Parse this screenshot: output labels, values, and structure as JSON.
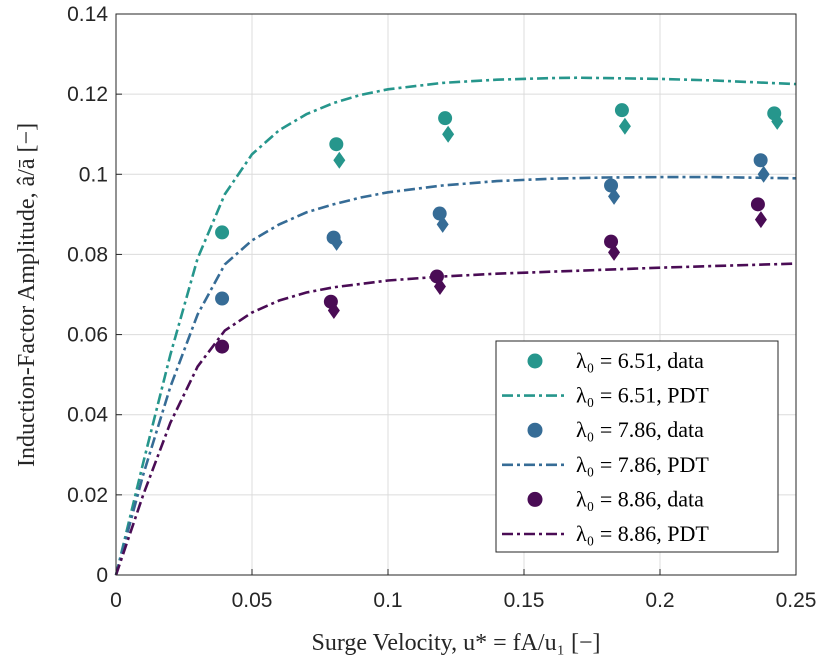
{
  "chart_data": {
    "type": "scatter",
    "xlabel": "Surge Velocity, u* = fA/u₁ [−]",
    "ylabel": "Induction-Factor Amplitude, â/ā [−]",
    "xlim": [
      0,
      0.25
    ],
    "ylim": [
      0,
      0.14
    ],
    "xticks": [
      0,
      0.05,
      0.1,
      0.15,
      0.2,
      0.25
    ],
    "xtick_labels": [
      "0",
      "0.05",
      "0.1",
      "0.15",
      "0.2",
      "0.25"
    ],
    "yticks": [
      0,
      0.02,
      0.04,
      0.06,
      0.08,
      0.1,
      0.12,
      0.14
    ],
    "ytick_labels": [
      "0",
      "0.02",
      "0.04",
      "0.06",
      "0.08",
      "0.1",
      "0.12",
      "0.14"
    ],
    "grid": true,
    "legend_position": "bottom-right",
    "series": [
      {
        "name": "λ₀ = 6.51, data",
        "kind": "data",
        "color": "#26968c",
        "x": [
          0.039,
          0.081,
          0.121,
          0.186,
          0.242
        ],
        "circle_y": [
          0.0855,
          0.1075,
          0.114,
          0.116,
          0.1152
        ],
        "diamond_y": [
          null,
          0.1035,
          0.11,
          0.112,
          0.1132
        ]
      },
      {
        "name": "λ₀ = 6.51, PDT",
        "kind": "model",
        "color": "#26968c",
        "x": [
          0,
          0.01,
          0.02,
          0.03,
          0.04,
          0.05,
          0.06,
          0.07,
          0.08,
          0.09,
          0.1,
          0.12,
          0.14,
          0.16,
          0.17,
          0.18,
          0.2,
          0.22,
          0.24,
          0.25
        ],
        "y": [
          0,
          0.028,
          0.055,
          0.079,
          0.095,
          0.105,
          0.111,
          0.115,
          0.1178,
          0.1198,
          0.1212,
          0.1228,
          0.1236,
          0.124,
          0.1241,
          0.124,
          0.1238,
          0.1234,
          0.1228,
          0.1225
        ]
      },
      {
        "name": "λ₀ = 7.86, data",
        "kind": "data",
        "color": "#366c96",
        "x": [
          0.039,
          0.08,
          0.119,
          0.182,
          0.237
        ],
        "circle_y": [
          0.069,
          0.0842,
          0.0902,
          0.0972,
          0.1035
        ],
        "diamond_y": [
          null,
          0.083,
          0.0875,
          0.0945,
          0.1
        ]
      },
      {
        "name": "λ₀ = 7.86, PDT",
        "kind": "model",
        "color": "#366c96",
        "x": [
          0,
          0.01,
          0.02,
          0.03,
          0.04,
          0.05,
          0.06,
          0.07,
          0.08,
          0.09,
          0.1,
          0.12,
          0.14,
          0.16,
          0.18,
          0.2,
          0.22,
          0.25
        ],
        "y": [
          0,
          0.025,
          0.047,
          0.065,
          0.0775,
          0.0835,
          0.0875,
          0.0905,
          0.0925,
          0.0942,
          0.0955,
          0.0972,
          0.0983,
          0.0989,
          0.0992,
          0.0993,
          0.0993,
          0.099
        ]
      },
      {
        "name": "λ₀ = 8.86, data",
        "kind": "data",
        "color": "#4a0c55",
        "x": [
          0.039,
          0.079,
          0.118,
          0.182,
          0.236
        ],
        "circle_y": [
          0.057,
          0.0682,
          0.0745,
          0.0832,
          0.0925
        ],
        "diamond_y": [
          null,
          0.066,
          0.072,
          0.0805,
          0.0887
        ]
      },
      {
        "name": "λ₀ = 8.86, PDT",
        "kind": "model",
        "color": "#4a0c55",
        "x": [
          0,
          0.01,
          0.02,
          0.03,
          0.04,
          0.05,
          0.06,
          0.07,
          0.08,
          0.1,
          0.12,
          0.14,
          0.16,
          0.18,
          0.2,
          0.22,
          0.25
        ],
        "y": [
          0,
          0.02,
          0.038,
          0.052,
          0.061,
          0.0655,
          0.0685,
          0.0705,
          0.0718,
          0.0735,
          0.0745,
          0.0752,
          0.0757,
          0.0762,
          0.0767,
          0.0771,
          0.0777
        ]
      }
    ],
    "legend": [
      {
        "text": "λ₀ = 6.51, data",
        "kind": "marker",
        "color": "#26968c"
      },
      {
        "text": "λ₀ = 6.51, PDT",
        "kind": "line",
        "color": "#26968c"
      },
      {
        "text": "λ₀ = 7.86, data",
        "kind": "marker",
        "color": "#366c96"
      },
      {
        "text": "λ₀ = 7.86, PDT",
        "kind": "line",
        "color": "#366c96"
      },
      {
        "text": "λ₀ = 8.86, data",
        "kind": "marker",
        "color": "#4a0c55"
      },
      {
        "text": "λ₀ = 8.86, PDT",
        "kind": "line",
        "color": "#4a0c55"
      }
    ]
  }
}
